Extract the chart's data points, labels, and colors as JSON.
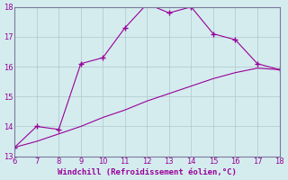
{
  "xlabel": "Windchill (Refroidissement éolien,°C)",
  "line1_x": [
    6,
    7,
    8,
    9,
    10,
    11,
    12,
    13,
    14,
    15,
    16,
    17,
    18
  ],
  "line1_y": [
    13.3,
    14.0,
    13.9,
    16.1,
    16.3,
    17.3,
    18.1,
    17.8,
    18.0,
    17.1,
    16.9,
    16.1,
    15.9
  ],
  "line2_x": [
    6,
    7,
    8,
    9,
    10,
    11,
    12,
    13,
    14,
    15,
    16,
    17,
    18
  ],
  "line2_y": [
    13.3,
    13.5,
    13.75,
    14.0,
    14.3,
    14.55,
    14.85,
    15.1,
    15.35,
    15.6,
    15.8,
    15.95,
    15.9
  ],
  "line_color": "#990099",
  "bg_color": "#d4ecee",
  "grid_color": "#b0c8cc",
  "xlim": [
    6,
    18
  ],
  "ylim": [
    13,
    18
  ],
  "xticks": [
    6,
    7,
    8,
    9,
    10,
    11,
    12,
    13,
    14,
    15,
    16,
    17,
    18
  ],
  "yticks": [
    13,
    14,
    15,
    16,
    17,
    18
  ],
  "marker": "+"
}
